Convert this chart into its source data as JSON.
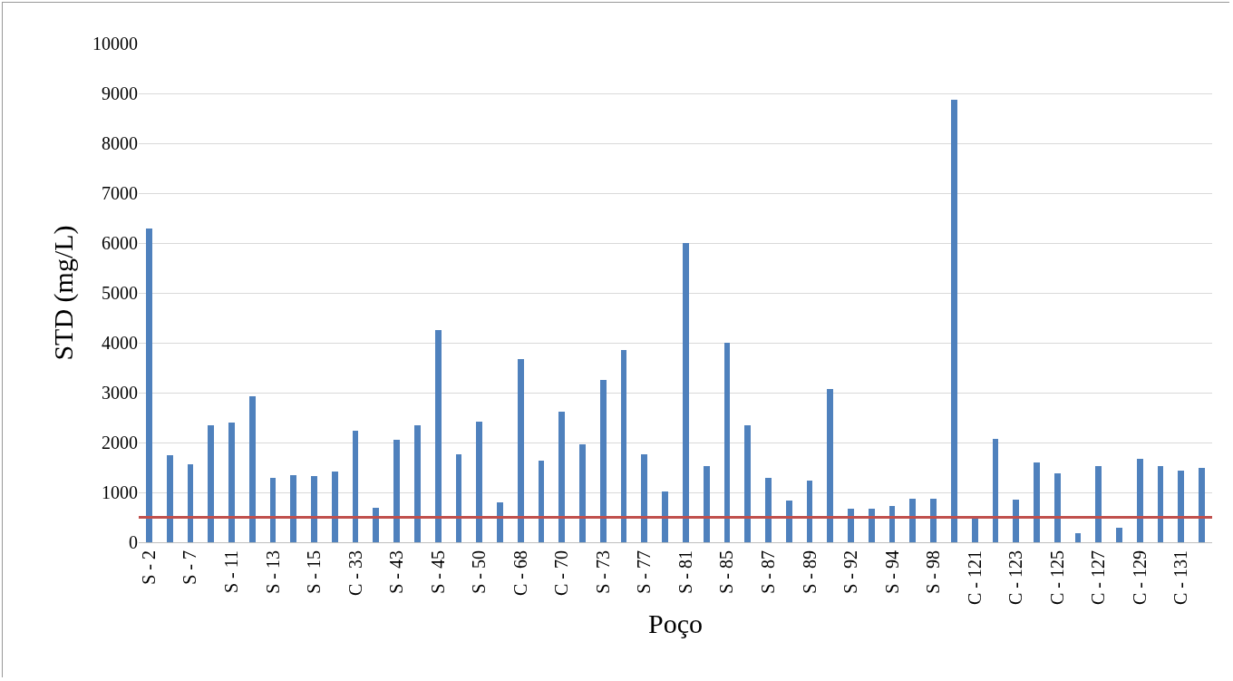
{
  "chart_data": {
    "type": "bar",
    "xlabel": "Poço",
    "ylabel": "STD (mg/L)",
    "categories": [
      "S - 2",
      null,
      "S - 7",
      null,
      "S - 11",
      null,
      "S - 13",
      null,
      "S - 15",
      null,
      "C - 33",
      null,
      "S - 43",
      null,
      "S - 45",
      null,
      "S - 50",
      null,
      "C - 68",
      null,
      "C - 70",
      null,
      "S - 73",
      null,
      "S - 77",
      null,
      "S - 81",
      null,
      "S - 85",
      null,
      "S - 87",
      null,
      "S - 89",
      null,
      "S - 92",
      null,
      "S - 94",
      null,
      "S - 98",
      null,
      "C - 121",
      null,
      "C - 123",
      null,
      "C - 125",
      null,
      "C - 127",
      null,
      "C - 129",
      null,
      "C - 131",
      null
    ],
    "values": [
      6300,
      1750,
      1560,
      2350,
      2400,
      2920,
      1300,
      1350,
      1320,
      1420,
      2230,
      700,
      2050,
      2350,
      4250,
      1760,
      2420,
      800,
      3670,
      1640,
      2620,
      1960,
      3260,
      3850,
      1760,
      1020,
      6000,
      1520,
      4000,
      2350,
      1300,
      840,
      1240,
      3080,
      680,
      680,
      720,
      870,
      870,
      8880,
      480,
      2080,
      860,
      1600,
      1380,
      180,
      1520,
      290,
      1680,
      1520,
      1440,
      1500
    ],
    "color": "#4f81bd",
    "ylim": [
      0,
      10000
    ],
    "yticks": [
      0,
      1000,
      2000,
      3000,
      4000,
      5000,
      6000,
      7000,
      8000,
      9000,
      10000
    ],
    "grid": "y",
    "ref_lines": [
      {
        "axis": "y",
        "value": 500,
        "color": "#c0504d"
      }
    ]
  }
}
